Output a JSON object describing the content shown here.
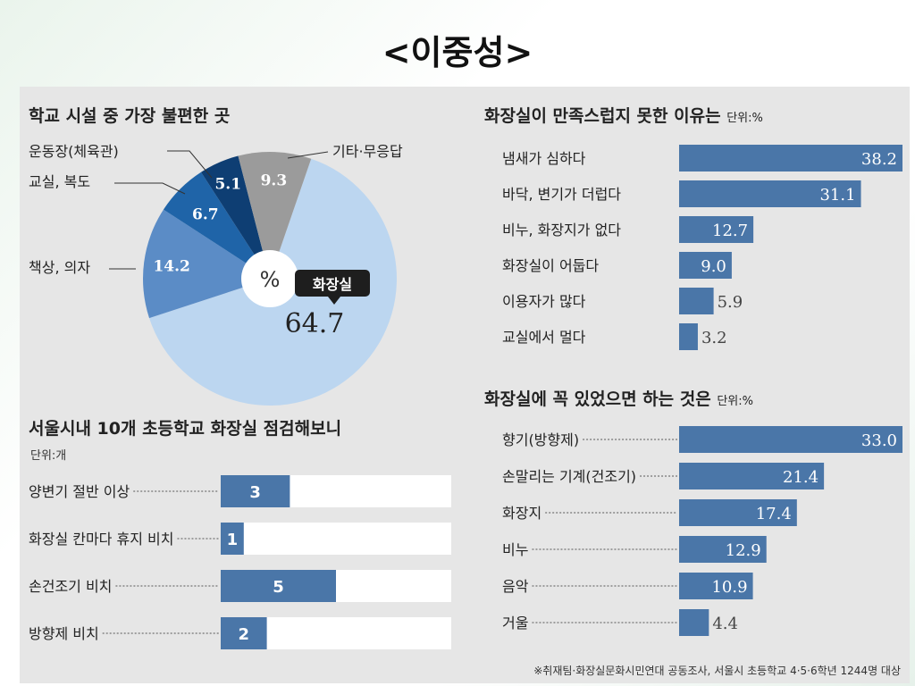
{
  "slide_title": "<이중성>",
  "colors": {
    "bar": "#4a76a8",
    "bar_track": "#ffffff",
    "panel_bg": "#e6e6e6",
    "pie_light": "#bcd6f0",
    "pie_mid": "#5b8cc6",
    "pie_dark": "#1f64a8",
    "pie_darkest": "#0e3e73",
    "pie_gray": "#9b9b9b",
    "badge_bg": "#1e1e1e"
  },
  "footnote": "※취재팀·화장실문화시민연대 공동조사, 서울시 초등학교 4·5·6학년 1244명 대상",
  "chart_data": [
    {
      "type": "pie",
      "title": "학교 시설 중 가장 불편한 곳",
      "center_label": "%",
      "slices": [
        {
          "label": "화장실",
          "value": 64.7,
          "color": "#bcd6f0"
        },
        {
          "label": "책상, 의자",
          "value": 14.2,
          "color": "#5b8cc6"
        },
        {
          "label": "교실, 복도",
          "value": 6.7,
          "color": "#1f64a8"
        },
        {
          "label": "운동장(체육관)",
          "value": 5.1,
          "color": "#0e3e73"
        },
        {
          "label": "기타·무응답",
          "value": 9.3,
          "color": "#9b9b9b"
        }
      ]
    },
    {
      "type": "bar",
      "orientation": "horizontal",
      "title": "화장실이 만족스럽지 못한 이유는",
      "unit": "단위:%",
      "categories": [
        "냄새가 심하다",
        "바닥, 변기가 더럽다",
        "비누, 화장지가 없다",
        "화장실이 어둡다",
        "이용자가 많다",
        "교실에서 멀다"
      ],
      "values": [
        38.2,
        31.1,
        12.7,
        9.0,
        5.9,
        3.2
      ],
      "labels": [
        "38.2",
        "31.1",
        "12.7",
        "9.0",
        "5.9",
        "3.2"
      ],
      "xlim": [
        0,
        38.2
      ]
    },
    {
      "type": "bar",
      "orientation": "horizontal",
      "title": "화장실에 꼭 있었으면 하는 것은",
      "unit": "단위:%",
      "categories": [
        "향기(방향제)",
        "손말리는 기계(건조기)",
        "화장지",
        "비누",
        "음악",
        "거울"
      ],
      "values": [
        33.0,
        21.4,
        17.4,
        12.9,
        10.9,
        4.4
      ],
      "labels": [
        "33.0",
        "21.4",
        "17.4",
        "12.9",
        "10.9",
        "4.4"
      ],
      "xlim": [
        0,
        33.0
      ]
    },
    {
      "type": "bar",
      "orientation": "horizontal",
      "title": "서울시내 10개 초등학교 화장실 점검해보니",
      "unit": "단위:개",
      "categories": [
        "양변기 절반 이상",
        "화장실 칸마다 휴지 비치",
        "손건조기 비치",
        "방향제 비치"
      ],
      "values": [
        3,
        1,
        5,
        2
      ],
      "labels": [
        "3",
        "1",
        "5",
        "2"
      ],
      "xlim": [
        0,
        10
      ]
    }
  ]
}
